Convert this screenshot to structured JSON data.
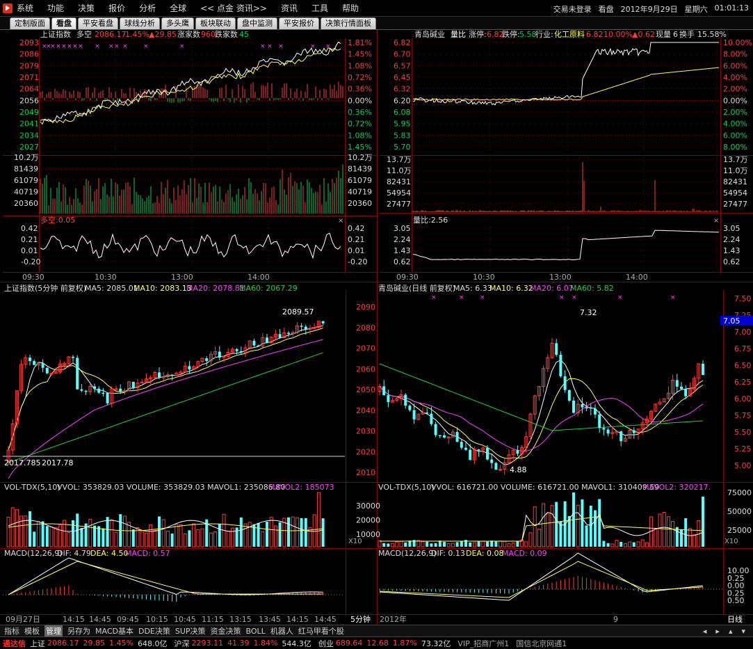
{
  "menubar": {
    "items": [
      "系统",
      "功能",
      "决策",
      "报价",
      "分析",
      "全球",
      "<< 点金 资讯>>",
      "资讯",
      "工具",
      "帮助"
    ],
    "login": "交易未登录",
    "mode": "看盘",
    "date": "2012年9月29日",
    "weekday": "星期六",
    "time": "01:01:13"
  },
  "tabs": [
    "定制版面",
    "看盘",
    "平安看盘",
    "球线分析",
    "多头鹰",
    "板块联动",
    "盘中监测",
    "平安报价",
    "决策行情面板"
  ],
  "active_tab": "看盘",
  "colors": {
    "up": "#ff3d3d",
    "down": "#00d35a",
    "cyan": "#54ffff",
    "white": "#ffffff",
    "yellow": "#ffff60",
    "magenta": "#ff40ff",
    "green": "#20d040",
    "grid": "#7a0000"
  },
  "panels": {
    "index_intraday": {
      "name": "上证指数",
      "tag": "多空",
      "price": "2086.17",
      "pct": "1.45%",
      "change": "▲29.85",
      "up_label": "涨家数",
      "up_count": "960",
      "down_label": "跌家数",
      "down_count": "45",
      "price_ticks": [
        "2093",
        "2086",
        "2079",
        "2071",
        "2064",
        "2056",
        "2049",
        "2041",
        "2034",
        "2027"
      ],
      "pct_ticks": [
        "1.81%",
        "1.45%",
        "1.08%",
        "0.72%",
        "0.36%",
        "0.00%",
        "0.36%",
        "0.72%",
        "1.08%",
        "1.45%"
      ],
      "vol_ticks": [
        "10.2万",
        "81439",
        "61079",
        "40719",
        "20360"
      ],
      "indicator_label": "多空:0.05",
      "indicator_ticks": [
        "0.42",
        "0.21",
        "0.01",
        "-0.20"
      ],
      "time_ticks": [
        "09:30",
        "10:30",
        "13:00",
        "14:00"
      ]
    },
    "stock_intraday": {
      "name": "青岛碱业",
      "tag": "量比",
      "limit_up_label": "涨停:",
      "limit_up": "6.82",
      "limit_down_label": "跌停:",
      "limit_down": "5.58",
      "industry_label": "行业:",
      "industry": "化工原料",
      "price": "6.82",
      "pct": "10.00%",
      "change": "▲0.62",
      "lots_label": "现量",
      "lots": "6",
      "turnover_label": "换手",
      "turnover": "15.58%",
      "price_ticks": [
        "6.82",
        "6.70",
        "6.57",
        "6.45",
        "6.32",
        "6.20",
        "6.08",
        "5.95",
        "5.83",
        "5.70"
      ],
      "pct_ticks": [
        "10.00%",
        "8.00%",
        "6.00%",
        "4.00%",
        "2.00%",
        "0.00%",
        "2.00%",
        "4.00%",
        "6.00%",
        "8.00%"
      ],
      "vol_ticks": [
        "13.7万",
        "11.0万",
        "82431",
        "54954",
        "27477"
      ],
      "indicator_label": "量比:2.56",
      "indicator_ticks": [
        "3.05",
        "2.24",
        "1.43",
        "0.62"
      ],
      "time_ticks": [
        "09:30",
        "10:30",
        "13:00",
        "14:00"
      ]
    },
    "index_kline": {
      "title": "上证指数(5分钟 前复权)",
      "ma5": "MA5: 2085.01",
      "ma10": "MA10: 2083.13",
      "ma20": "MA20: 2078.81",
      "ma60": "MA60: 2067.29",
      "high_label": "2089.57",
      "low_label": "2017.78",
      "low_label2": "2017.785",
      "price_ticks": [
        "2090",
        "2080",
        "2070",
        "2060",
        "2050",
        "2040",
        "2030",
        "2020",
        "2010"
      ],
      "vol_title": "VOL-TDX(5,10)",
      "vol_vals": "VVOL: 353829.03  VOLUME: 353829.03  MAVOL1: 235086.80",
      "vol_mavol2": "MAVOL2: 185073",
      "vol_ticks": [
        "30000",
        "20000",
        "10000"
      ],
      "vol_unit": "X10",
      "macd_title": "MACD(12,26,9)",
      "macd_dif": "DIF: 4.79",
      "macd_dea": "DEA: 4.50",
      "macd_val": "MACD: 0.57",
      "time_ticks": [
        "09月27日",
        "14:15",
        "14:45",
        "09:45",
        "10:15",
        "10:45",
        "11:15",
        "13:15",
        "13:45",
        "14:15",
        "14:45"
      ],
      "period": "5分钟"
    },
    "stock_kline": {
      "title": "青岛碱业(日线 前复权)",
      "ma5": "MA5: 6.33",
      "ma10": "MA10: 6.32",
      "ma20": "MA20: 6.07",
      "ma60": "MA60: 5.82",
      "high_label": "7.32",
      "low_label": "4.88",
      "current_price": "7.05",
      "price_ticks": [
        "7.50",
        "7.25",
        "7.00",
        "6.75",
        "6.50",
        "6.25",
        "6.00",
        "5.75",
        "5.50",
        "5.25",
        "5.00"
      ],
      "vol_title": "VOL-TDX(5,10)",
      "vol_vals": "VVOL: 616721.00  VOLUME: 616721.00  MAVOL1: 310409.59",
      "vol_mavol2": "MAVOL2: 320217.",
      "vol_ticks": [
        "75000",
        "50000",
        "25000"
      ],
      "vol_unit": "X10",
      "macd_title": "MACD(12,26,9)",
      "macd_dif": "DIF: 0.13",
      "macd_dea": "DEA: 0.08",
      "macd_val": "MACD: 0.09",
      "macd_ticks": [
        "10.00",
        "0.25",
        "0.00",
        "0.25",
        "0.50"
      ],
      "time_ticks": [
        "2012年",
        "9"
      ],
      "period": "日线"
    }
  },
  "bottombar": {
    "items": [
      "指标",
      "模板",
      "管理",
      "另存为",
      "MACD基本",
      "DDE决策",
      "SUP决策",
      "资金决策",
      "BOLL",
      "机器人",
      "红马甲看个股"
    ],
    "selected": "管理"
  },
  "statusbar": {
    "brand": "通达信",
    "sh_label": "上证",
    "sh_price": "2086.17",
    "sh_change": "29.85",
    "sh_pct": "1.45%",
    "sh_amount": "648.0亿",
    "hs_label": "沪深",
    "hs_price": "2293.11",
    "hs_change": "41.39",
    "hs_pct": "1.84%",
    "hs_amount": "544.3亿",
    "cy_label": "创业",
    "cy_price": "689.64",
    "cy_change": "12.68",
    "cy_pct": "1.87%",
    "cy_amount": "73.32亿",
    "server": "VIP_招商广州1",
    "server2": "国信北京网通1"
  }
}
